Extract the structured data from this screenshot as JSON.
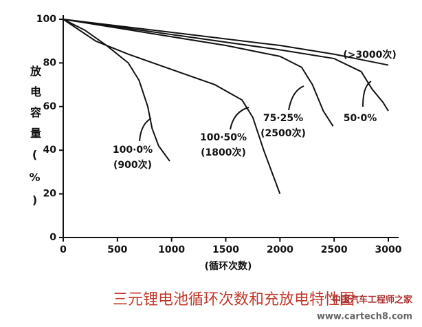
{
  "chart_data": {
    "type": "line",
    "title": "三元锂电池循环次数和充放电特性图",
    "xlabel": "(循环次数)",
    "ylabel": "放电容量(%)",
    "xlim": [
      0,
      3000
    ],
    "xticks": [
      0,
      500,
      1000,
      1500,
      2000,
      2500,
      3000
    ],
    "ylim": [
      0,
      100
    ],
    "yticks": [
      0,
      20,
      40,
      60,
      80,
      100
    ],
    "series": [
      {
        "name": "100·0%",
        "cycles": "(900次)",
        "color": "#111111",
        "x": [
          0,
          200,
          400,
          600,
          700,
          780,
          820,
          880,
          983
        ],
        "values": [
          100,
          95,
          88,
          80,
          72,
          60,
          50,
          42,
          35
        ]
      },
      {
        "name": "100·50%",
        "cycles": "(1800次)",
        "color": "#111111",
        "x": [
          0,
          300,
          600,
          1000,
          1400,
          1650,
          1750,
          1850,
          2000
        ],
        "values": [
          100,
          90,
          84,
          77,
          70,
          63,
          55,
          40,
          20
        ]
      },
      {
        "name": "75·25%",
        "cycles": "(2500次)",
        "color": "#111111",
        "x": [
          0,
          500,
          1000,
          1500,
          2000,
          2200,
          2300,
          2400,
          2490
        ],
        "values": [
          100,
          96,
          92,
          88,
          83,
          78,
          70,
          58,
          51
        ]
      },
      {
        "name": "50·0%",
        "color": "#111111",
        "x": [
          0,
          1000,
          2000,
          2500,
          2750,
          2850,
          2950,
          3000
        ],
        "values": [
          100,
          93,
          86,
          82,
          76,
          68,
          62,
          58
        ]
      },
      {
        "name": "(>3000次)",
        "color": "#111111",
        "x": [
          0,
          1000,
          2000,
          2500,
          3000
        ],
        "values": [
          100,
          94,
          88,
          84,
          79
        ]
      }
    ],
    "watermark": [
      "中国汽车工程师之家",
      "www.cartech8.com"
    ]
  }
}
